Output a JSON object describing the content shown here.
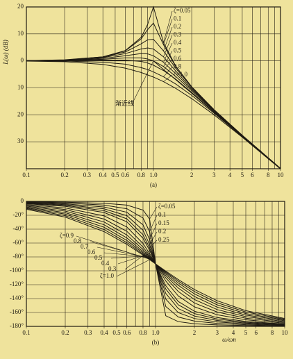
{
  "chart_data": [
    {
      "type": "line",
      "xscale": "log",
      "caption": "(a)",
      "ylabel": "L(ω) (dB)",
      "x": [
        0.1,
        0.2,
        0.4,
        0.6,
        0.8,
        0.9,
        1,
        1.2,
        1.5,
        2,
        3,
        5,
        10
      ],
      "xlim": [
        0.1,
        10
      ],
      "xticks": [
        0.1,
        0.2,
        0.3,
        0.4,
        0.5,
        0.6,
        0.8,
        {
          "value": 1,
          "label": "1.0"
        },
        2,
        3,
        4,
        5,
        6,
        8,
        10
      ],
      "xgrid": [
        0.1,
        0.2,
        0.3,
        0.4,
        0.5,
        0.6,
        0.7,
        0.8,
        0.9,
        1,
        2,
        3,
        4,
        5,
        6,
        7,
        8,
        9,
        10
      ],
      "ylim": [
        -40,
        20
      ],
      "yticks": [
        20,
        10,
        0,
        {
          "value": -10,
          "label": "10"
        },
        {
          "value": -20,
          "label": "20"
        },
        {
          "value": -30,
          "label": "30"
        }
      ],
      "grid": true,
      "series": [
        {
          "name": "ζ=0.05",
          "color": "#1e1a12",
          "values": [
            0.1,
            0.4,
            1.5,
            3.8,
            8.7,
            13.5,
            20.0,
            6.8,
            -2.0,
            -9.6,
            -18.1,
            -27.6,
            -39.9
          ]
        },
        {
          "name": "0.1",
          "color": "#1e1a12",
          "values": [
            0.1,
            0.3,
            1.5,
            3.7,
            8.1,
            11.6,
            14.0,
            6.0,
            -2.2,
            -9.6,
            -18.1,
            -27.6,
            -39.9
          ]
        },
        {
          "name": "0.2",
          "color": "#1e1a12",
          "values": [
            0.1,
            0.3,
            1.4,
            3.3,
            6.3,
            7.8,
            8.0,
            3.7,
            -2.8,
            -9.8,
            -18.2,
            -27.6,
            -39.9
          ]
        },
        {
          "name": "0.3",
          "color": "#1e1a12",
          "values": [
            0.1,
            0.3,
            1.2,
            2.7,
            4.4,
            4.8,
            4.4,
            1.5,
            -3.8,
            -10.2,
            -18.3,
            -27.7,
            -39.9
          ]
        },
        {
          "name": "0.4",
          "color": "#1e1a12",
          "values": [
            0.1,
            0.2,
            0.9,
            1.9,
            2.7,
            2.6,
            1.9,
            -0.5,
            -4.8,
            -10.6,
            -18.4,
            -27.7,
            -39.9
          ]
        },
        {
          "name": "0.5",
          "color": "#1e1a12",
          "values": [
            0,
            0.2,
            0.6,
            1.1,
            1.1,
            0.7,
            0,
            -2.1,
            -5.8,
            -11.1,
            -18.6,
            -27.8,
            -40.0
          ]
        },
        {
          "name": "0.6",
          "color": "#1e1a12",
          "values": [
            0,
            0.1,
            0.3,
            0.3,
            -0.2,
            -0.8,
            -1.6,
            -3.6,
            -6.8,
            -11.7,
            -18.9,
            -27.9,
            -40.0
          ]
        },
        {
          "name": "0.8",
          "color": "#1e1a12",
          "values": [
            0,
            -0.1,
            -0.5,
            -1.2,
            -2.5,
            -3.2,
            -4.1,
            -5.9,
            -8.6,
            -12.8,
            -19.4,
            -28.1,
            -40.0
          ]
        },
        {
          "name": "ζ=1.0",
          "color": "#1e1a12",
          "values": [
            -0.1,
            -0.3,
            -1.3,
            -2.7,
            -4.3,
            -5.2,
            -6.0,
            -7.7,
            -10.2,
            -14.0,
            -20.0,
            -28.3,
            -40.1
          ]
        },
        {
          "name": "渐近线",
          "color": "#1e1a12",
          "values": [
            0,
            0,
            0,
            0,
            0,
            0,
            0,
            -3.2,
            -7.0,
            -12.0,
            -19.1,
            -28.0,
            -40.0
          ]
        }
      ]
    },
    {
      "type": "line",
      "xscale": "log",
      "caption": "(b)",
      "xlabel": "ω/ωn",
      "x": [
        0.1,
        0.2,
        0.4,
        0.6,
        0.8,
        0.9,
        1,
        1.2,
        1.5,
        2,
        3,
        5,
        10
      ],
      "xlim": [
        0.1,
        10
      ],
      "xticks": [
        0.1,
        0.2,
        0.3,
        0.4,
        0.5,
        0.6,
        0.8,
        {
          "value": 1,
          "label": "1.0"
        },
        2,
        3,
        4,
        5,
        6,
        8,
        10
      ],
      "xgrid": [
        0.1,
        0.2,
        0.3,
        0.4,
        0.5,
        0.6,
        0.7,
        0.8,
        0.9,
        1,
        2,
        3,
        4,
        5,
        6,
        7,
        8,
        9,
        10
      ],
      "ylim": [
        -180,
        0
      ],
      "yticks": [
        0,
        {
          "value": -20,
          "label": "-20°"
        },
        {
          "value": -40,
          "label": "-40°"
        },
        {
          "value": -60,
          "label": "-60°"
        },
        {
          "value": -80,
          "label": "-80°"
        },
        {
          "value": -100,
          "label": "-100°"
        },
        {
          "value": -120,
          "label": "-120°"
        },
        {
          "value": -140,
          "label": "-140°"
        },
        {
          "value": -160,
          "label": "-160°"
        },
        {
          "value": -180,
          "label": "-180°"
        }
      ],
      "grid": true,
      "series": [
        {
          "name": "ζ=0.05",
          "color": "#1e1a12",
          "values": [
            -0.6,
            -1.2,
            -2.7,
            -5.4,
            -12.5,
            -25.4,
            -90,
            -164.7,
            -173.2,
            -176.2,
            -177.9,
            -178.8,
            -179.4
          ]
        },
        {
          "name": "0.1",
          "color": "#1e1a12",
          "values": [
            -1.2,
            -2.4,
            -5.4,
            -10.6,
            -24.0,
            -43.5,
            -90,
            -151.4,
            -166.5,
            -172.4,
            -175.7,
            -177.6,
            -178.8
          ]
        },
        {
          "name": "0.15",
          "color": "#1e1a12",
          "values": [
            -1.7,
            -3.6,
            -8.1,
            -15.7,
            -33.7,
            -54.9,
            -90,
            -140.7,
            -160.2,
            -168.7,
            -173.6,
            -176.4,
            -178.3
          ]
        },
        {
          "name": "0.2",
          "color": "#1e1a12",
          "values": [
            -2.3,
            -4.8,
            -10.8,
            -20.6,
            -41.6,
            -62.2,
            -90,
            -132.5,
            -154.4,
            -165.1,
            -171.5,
            -175.2,
            -177.7
          ]
        },
        {
          "name": "0.25",
          "color": "#1e1a12",
          "values": [
            -2.9,
            -5.9,
            -13.4,
            -25.1,
            -48.0,
            -67.1,
            -90,
            -126.2,
            -149.0,
            -161.6,
            -169.4,
            -174.1,
            -177.1
          ]
        },
        {
          "name": "0.3",
          "color": "#1e1a12",
          "values": [
            -3.5,
            -7.1,
            -16.0,
            -29.4,
            -53.1,
            -70.6,
            -90,
            -121.4,
            -144.2,
            -158.2,
            -167.3,
            -172.9,
            -176.5
          ]
        },
        {
          "name": "0.4",
          "color": "#1e1a12",
          "values": [
            -4.6,
            -9.5,
            -20.9,
            -36.9,
            -60.6,
            -75.2,
            -90,
            -114.6,
            -136.2,
            -151.9,
            -163.3,
            -170.5,
            -175.4
          ]
        },
        {
          "name": "0.5",
          "color": "#1e1a12",
          "values": [
            -5.8,
            -11.8,
            -25.5,
            -43.2,
            -65.8,
            -78.1,
            -90,
            -110.1,
            -129.8,
            -146.3,
            -159.4,
            -168.2,
            -174.2
          ]
        },
        {
          "name": "0.6",
          "color": "#1e1a12",
          "values": [
            -6.9,
            -14.0,
            -29.7,
            -48.4,
            -69.4,
            -80.0,
            -90,
            -107.0,
            -124.8,
            -141.3,
            -155.8,
            -166.0,
            -173.1
          ]
        },
        {
          "name": "0.7",
          "color": "#1e1a12",
          "values": [
            -8.1,
            -16.3,
            -33.7,
            -52.7,
            -72.2,
            -81.4,
            -90,
            -104.7,
            -120.8,
            -137.0,
            -152.3,
            -163.7,
            -171.9
          ]
        },
        {
          "name": "0.8",
          "color": "#1e1a12",
          "values": [
            -9.2,
            -18.4,
            -37.3,
            -56.3,
            -74.3,
            -82.5,
            -90,
            -102.9,
            -117.5,
            -133.2,
            -149.0,
            -161.6,
            -170.8
          ]
        },
        {
          "name": "ζ=0.9",
          "color": "#1e1a12",
          "values": [
            -10.3,
            -20.6,
            -40.6,
            -59.4,
            -76.0,
            -83.3,
            -90,
            -101.5,
            -114.8,
            -129.8,
            -146.0,
            -159.4,
            -169.7
          ]
        },
        {
          "name": "ζ=1.0",
          "color": "#1e1a12",
          "values": [
            -11.4,
            -22.6,
            -43.6,
            -61.9,
            -77.3,
            -84.0,
            -90,
            -100.4,
            -112.6,
            -126.9,
            -143.1,
            -157.4,
            -168.6
          ]
        }
      ]
    }
  ]
}
